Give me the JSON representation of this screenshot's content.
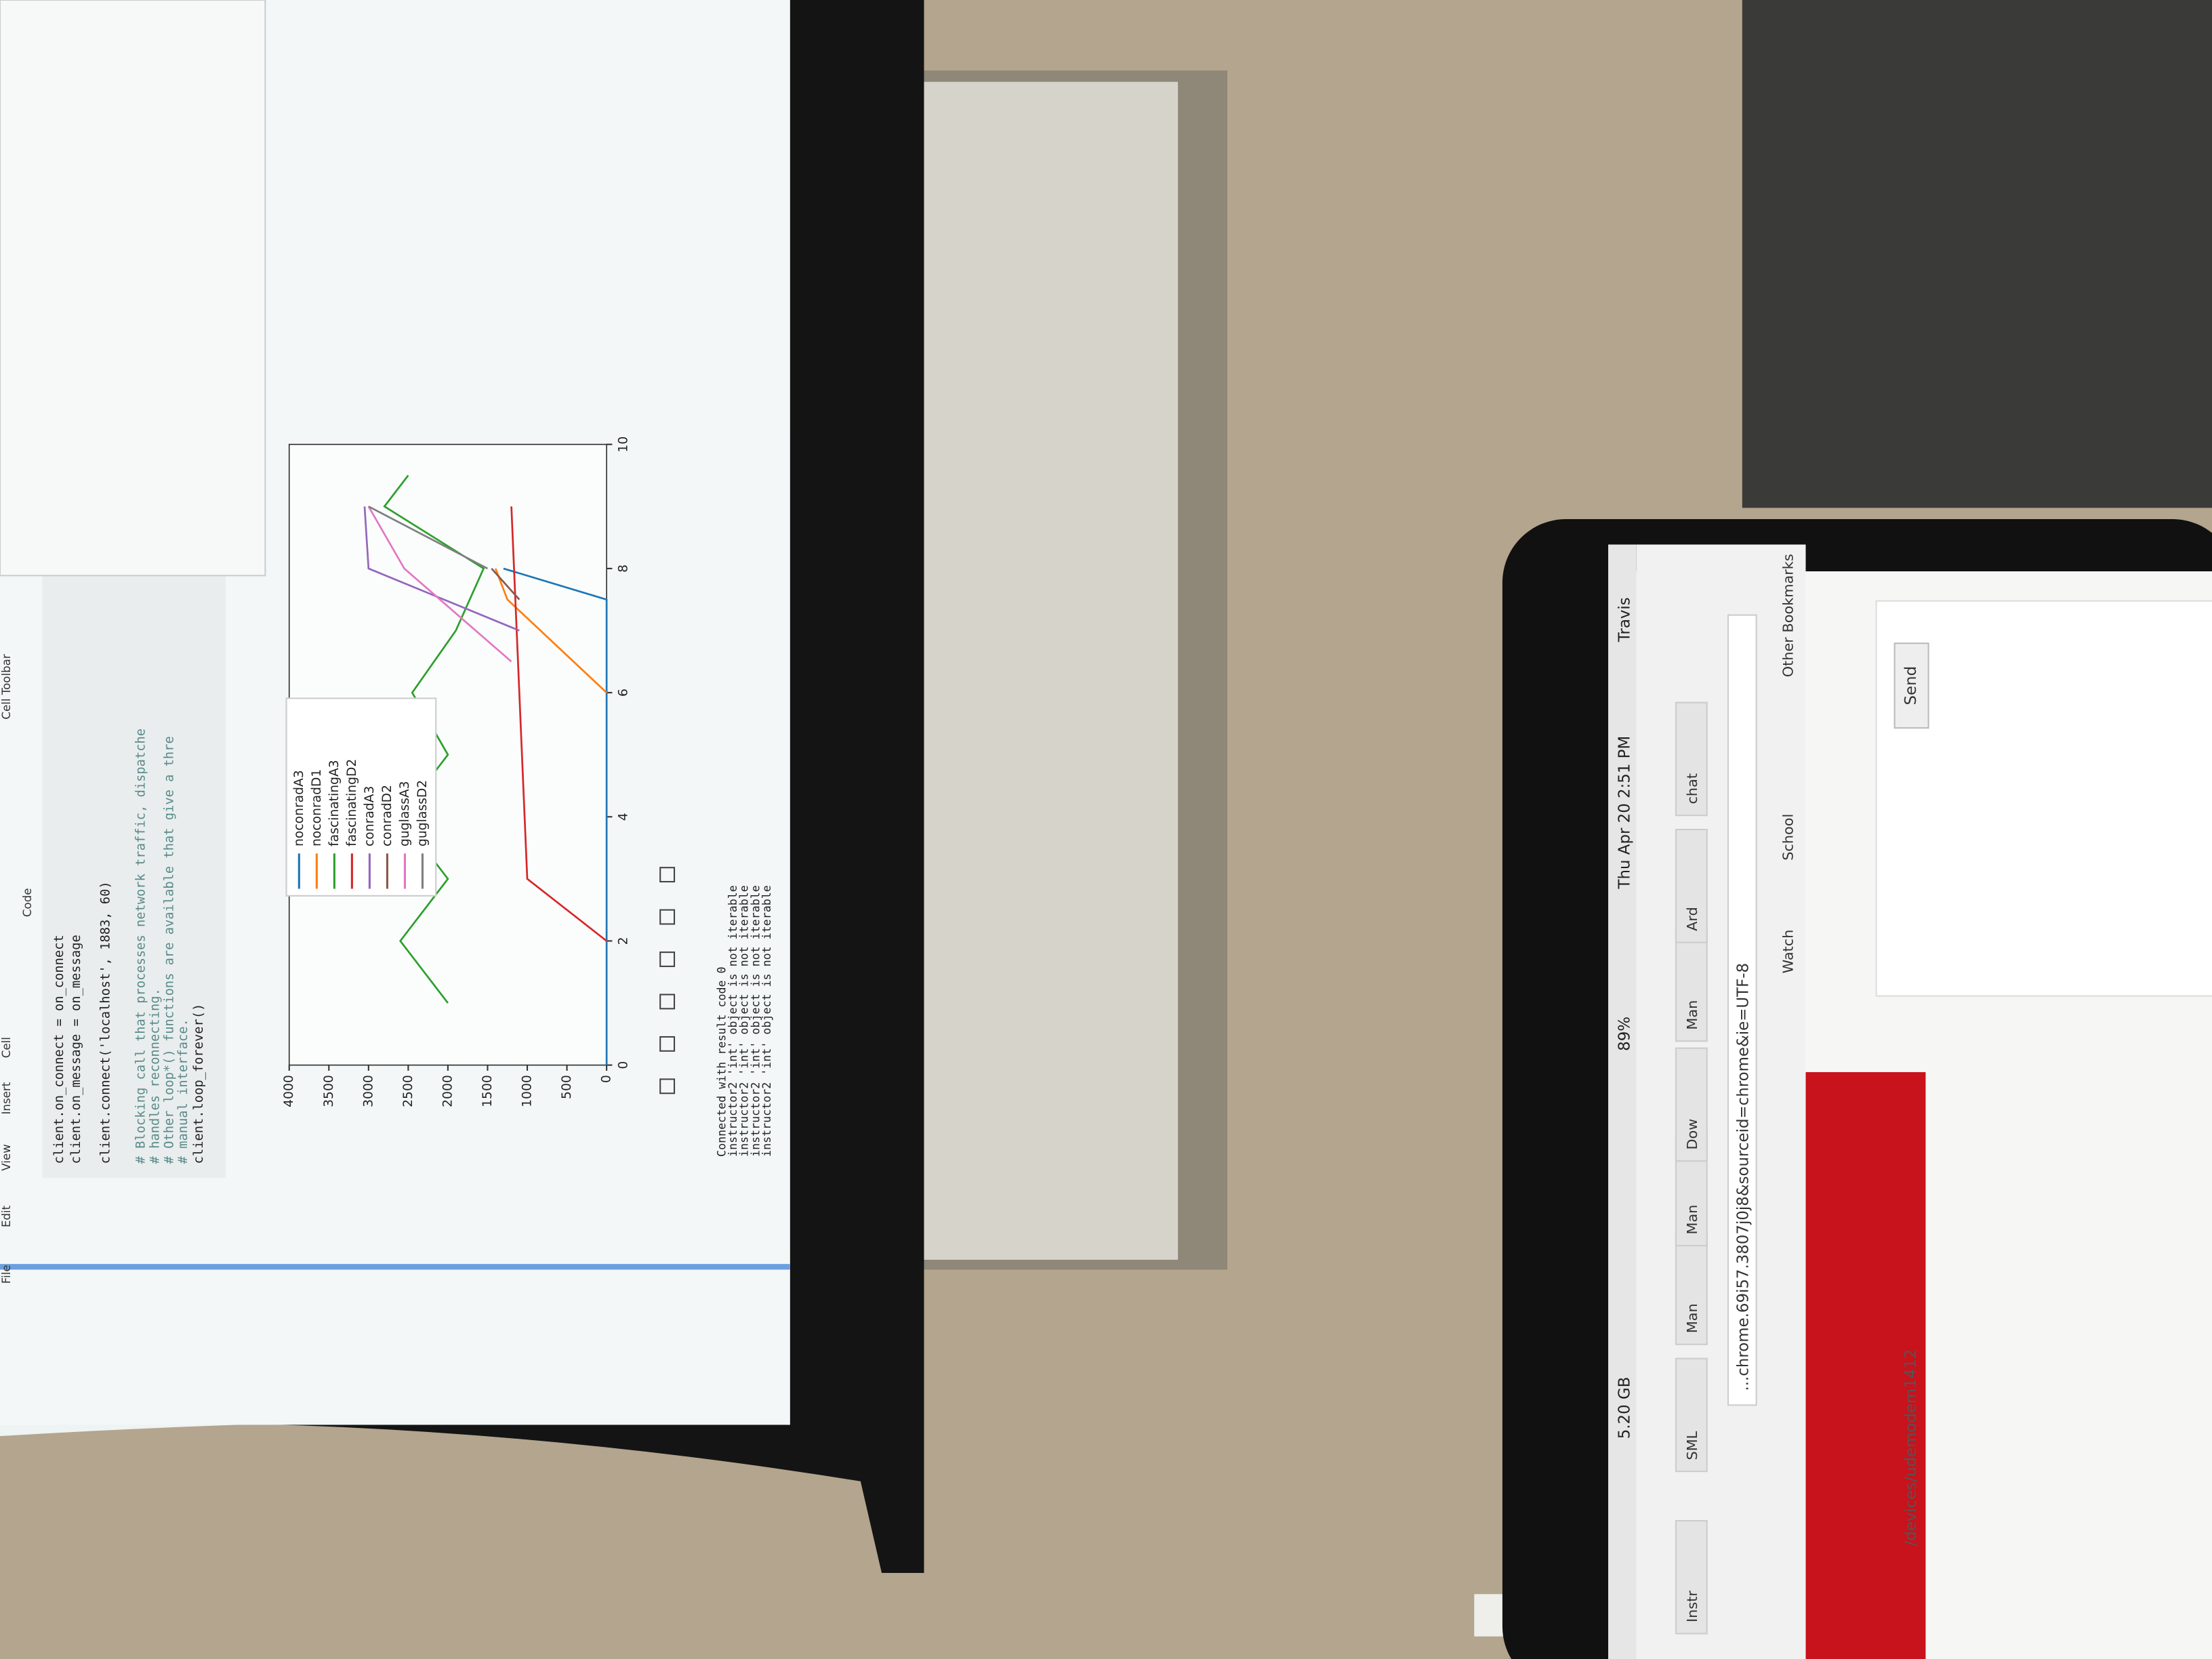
{
  "notebook": {
    "menu": [
      "File",
      "Edit",
      "View",
      "Insert",
      "Cell"
    ],
    "cell_type": "Code",
    "cell_toolbar": "Cell Toolbar",
    "code": [
      "client.on_connect = on_connect",
      "client.on_message = on_message",
      "client.connect('localhost', 1883, 60)",
      "# Blocking call that processes network traffic, dispatche",
      "# handles reconnecting.",
      "# Other loop*() functions are available that give a thre",
      "# manual interface.",
      "client.loop_forever()"
    ],
    "output": [
      "Connected with result code 0",
      "instructor2 'int' object is not iterable",
      "instructor2 'int' object is not iterable",
      "instructor2 'int' object is not iterable",
      "instructor2 'int' object is not iterable"
    ]
  },
  "chart_data": {
    "type": "line",
    "xlim": [
      0,
      10
    ],
    "ylim": [
      0,
      4000
    ],
    "xticks": [
      0,
      2,
      4,
      6,
      8,
      10
    ],
    "yticks": [
      0,
      500,
      1000,
      1500,
      2000,
      2500,
      3000,
      3500,
      4000
    ],
    "legend": "upper left",
    "series": [
      {
        "name": "noconradA3",
        "color": "#1f77b4",
        "x": [
          0,
          2,
          4,
          6,
          7.5,
          8
        ],
        "values": [
          0,
          0,
          0,
          0,
          0,
          1300
        ]
      },
      {
        "name": "noconradD1",
        "color": "#ff7f0e",
        "x": [
          6,
          7.5,
          8
        ],
        "values": [
          0,
          1250,
          1400
        ]
      },
      {
        "name": "fascinatingA3",
        "color": "#2ca02c",
        "x": [
          1,
          2,
          3,
          4,
          5,
          6,
          7,
          8,
          9,
          9.5
        ],
        "values": [
          2000,
          2600,
          2000,
          2600,
          2000,
          2450,
          1900,
          1550,
          2800,
          2500
        ]
      },
      {
        "name": "fascinatingD2",
        "color": "#d62728",
        "x": [
          2,
          3,
          9
        ],
        "values": [
          0,
          1000,
          1200
        ]
      },
      {
        "name": "conradA3",
        "color": "#9467bd",
        "x": [
          7,
          8,
          9
        ],
        "values": [
          1100,
          3000,
          3050
        ]
      },
      {
        "name": "conradD2",
        "color": "#8c564b",
        "x": [
          7.5,
          8
        ],
        "values": [
          1100,
          1450
        ]
      },
      {
        "name": "guglassA3",
        "color": "#e377c2",
        "x": [
          6.5,
          8,
          9
        ],
        "values": [
          1200,
          2550,
          3000
        ]
      },
      {
        "name": "guglassD2",
        "color": "#7f7f7f",
        "x": [
          8,
          9
        ],
        "values": [
          1500,
          3000
        ]
      }
    ]
  },
  "laptop": {
    "menu_bar": [
      "5.20 GB",
      "89%",
      "Thu Apr 20 2:51 PM",
      "Travis"
    ],
    "tabs": [
      "Instr",
      "SML",
      "Man",
      "Man",
      "Dow",
      "Man",
      "Ard",
      "chat"
    ],
    "address": "...chrome.69i57.3807j0j8&sourceid=chrome&ie=UTF-8",
    "bookmarks": [
      "Watch",
      "School",
      "Other Bookmarks"
    ],
    "input": "/devices/udemodem1412",
    "button": "Send"
  }
}
